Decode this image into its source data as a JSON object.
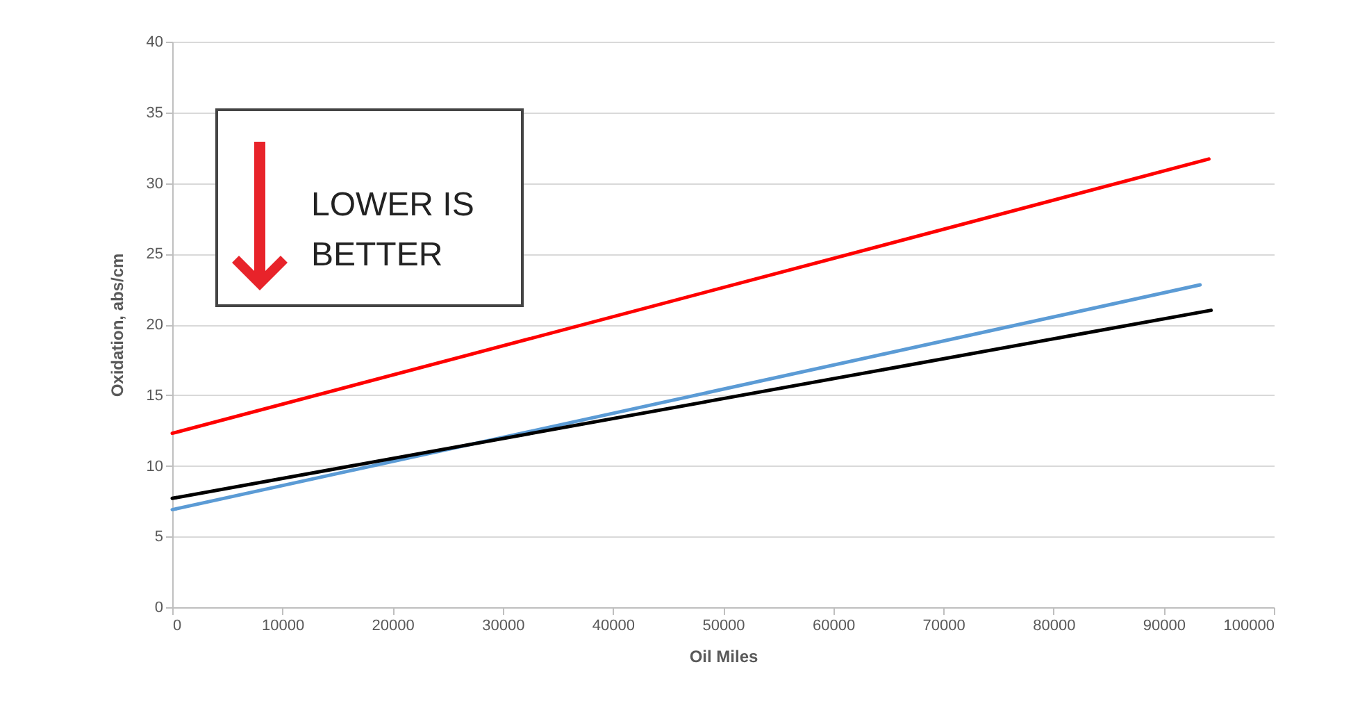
{
  "chart_data": {
    "type": "line",
    "xlabel": "Oil Miles",
    "ylabel": "Oxidation, abs/cm",
    "annotations": [
      "LOWER IS BETTER"
    ],
    "series": [
      {
        "color": "#ff0000",
        "x": [
          0,
          94100
        ],
        "values": [
          12.3,
          31.7
        ]
      },
      {
        "color": "#5b9bd5",
        "x": [
          0,
          93300
        ],
        "values": [
          6.9,
          22.8
        ]
      },
      {
        "color": "#000000",
        "x": [
          0,
          94300
        ],
        "values": [
          7.7,
          21.0
        ]
      }
    ],
    "xlim": [
      0,
      100000
    ],
    "xticks": [
      0,
      10000,
      20000,
      30000,
      40000,
      50000,
      60000,
      70000,
      80000,
      90000,
      100000
    ],
    "ylim": [
      0,
      40
    ],
    "yticks": [
      0,
      5,
      10,
      15,
      20,
      25,
      30,
      35,
      40
    ],
    "grid": "y",
    "legend": false,
    "marker": "none",
    "line_style": "solid"
  }
}
